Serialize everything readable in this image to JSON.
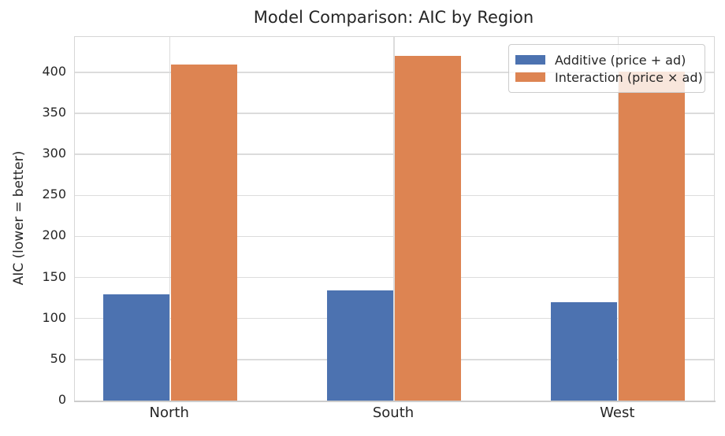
{
  "title": "Model Comparison: AIC by Region",
  "colors": {
    "additive": "#4C72B0",
    "interaction": "#DD8452",
    "grid": "#DCDCDC",
    "text": "#262626",
    "frame": "#D6D6D6"
  },
  "chart_data": {
    "type": "bar",
    "title": "Model Comparison: AIC by Region",
    "xlabel": "",
    "ylabel": "AIC (lower = better)",
    "categories": [
      "North",
      "South",
      "West"
    ],
    "series": [
      {
        "name": "Additive (price + ad)",
        "color": "#4C72B0",
        "values": [
          129,
          134,
          120
        ]
      },
      {
        "name": "Interaction (price × ad)",
        "color": "#DD8452",
        "values": [
          409,
          420,
          401
        ]
      }
    ],
    "ylim": [
      0,
      443
    ],
    "yticks": [
      0,
      50,
      100,
      150,
      200,
      250,
      300,
      350,
      400
    ],
    "grid": true,
    "legend_position": "upper right"
  }
}
